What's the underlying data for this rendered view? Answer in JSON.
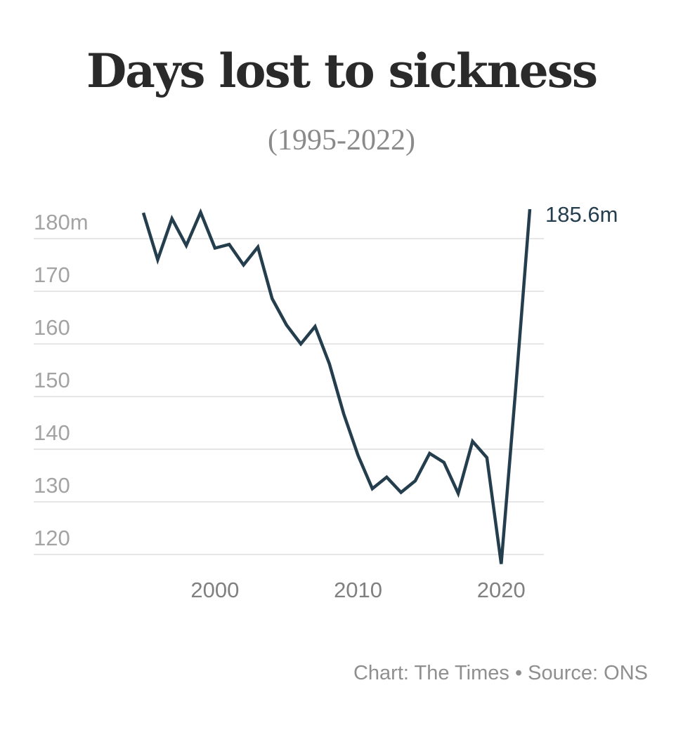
{
  "header": {
    "title": "Days lost to sickness",
    "subtitle": "(1995-2022)"
  },
  "footer": {
    "credit": "Chart: The Times",
    "separator": "•",
    "source": "Source: ONS"
  },
  "colors": {
    "line": "#243e4e",
    "grid": "#e6e6e6"
  },
  "chart_data": {
    "type": "line",
    "title": "Days lost to sickness",
    "subtitle": "(1995-2022)",
    "xlabel": "",
    "ylabel": "",
    "unit": "m",
    "x": [
      1995,
      1996,
      1997,
      1998,
      1999,
      2000,
      2001,
      2002,
      2003,
      2004,
      2005,
      2006,
      2007,
      2008,
      2009,
      2010,
      2011,
      2012,
      2013,
      2014,
      2015,
      2016,
      2017,
      2018,
      2019,
      2020,
      2021,
      2022
    ],
    "series": [
      {
        "name": "Days lost to sickness",
        "values": [
          184.9,
          176.0,
          183.8,
          178.7,
          185.0,
          178.2,
          178.9,
          175.0,
          178.4,
          168.6,
          163.6,
          160.0,
          163.3,
          156.2,
          146.7,
          138.8,
          132.5,
          134.7,
          131.8,
          134.0,
          139.2,
          137.5,
          131.6,
          141.5,
          138.4,
          118.2,
          151.0,
          185.6
        ]
      }
    ],
    "ylim": [
      116,
      186
    ],
    "xlim": [
      1995,
      2022
    ],
    "yticks": [
      120,
      130,
      140,
      150,
      160,
      170,
      180
    ],
    "ytick_labels": [
      "120",
      "130",
      "140",
      "150",
      "160",
      "170",
      "180m"
    ],
    "xticks": [
      2000,
      2010,
      2020
    ],
    "xtick_labels": [
      "2000",
      "2010",
      "2020"
    ],
    "grid": true,
    "annotations": [
      {
        "text": "185.6m",
        "x": 2022,
        "y": 185.6
      }
    ],
    "source": "ONS",
    "credit": "The Times"
  }
}
